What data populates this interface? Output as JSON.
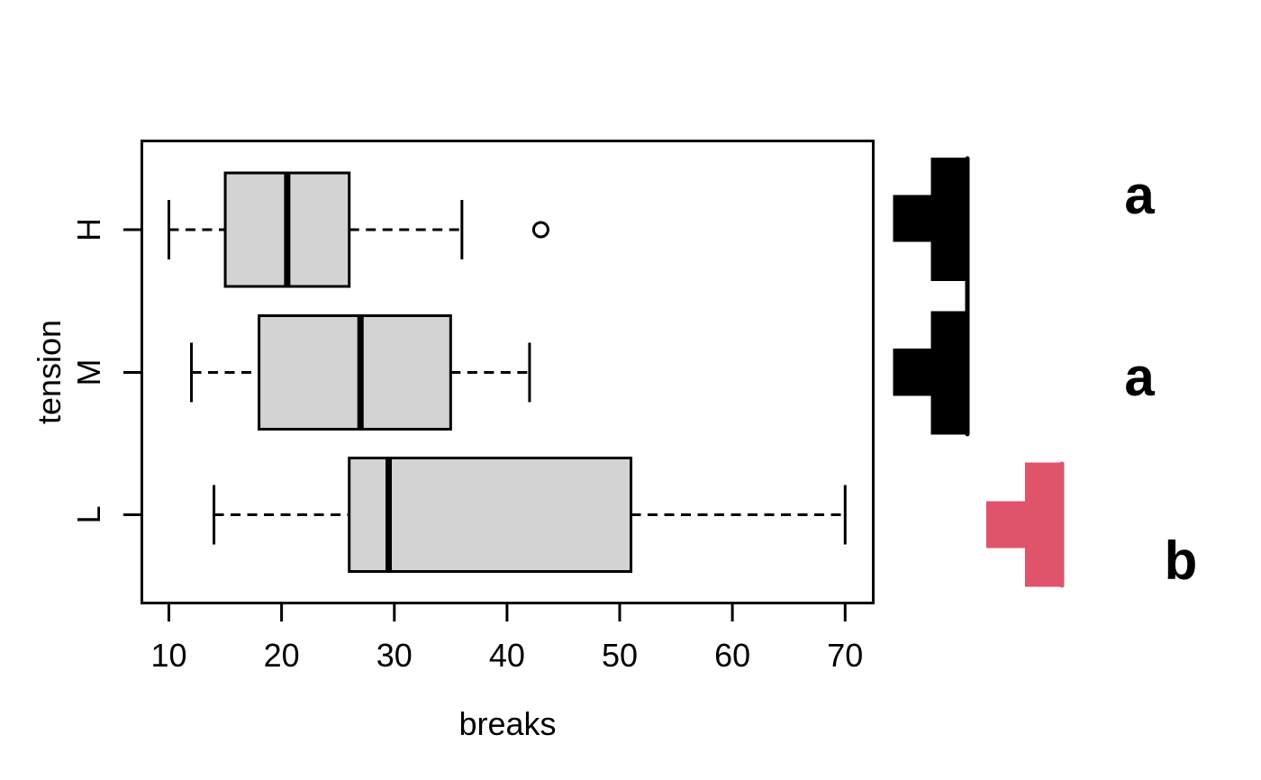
{
  "chart_data": {
    "type": "boxplot",
    "orientation": "horizontal",
    "title": "",
    "xlabel": "breaks",
    "ylabel": "tension",
    "x_ticks": [
      10,
      20,
      30,
      40,
      50,
      60,
      70
    ],
    "xlim": [
      10,
      70
    ],
    "categories": [
      "H",
      "M",
      "L"
    ],
    "series": [
      {
        "level": "H",
        "whisker_low": 10,
        "q1": 15,
        "median": 20.5,
        "q3": 26,
        "whisker_high": 36,
        "outliers": [
          43
        ],
        "group": "a"
      },
      {
        "level": "M",
        "whisker_low": 12,
        "q1": 18,
        "median": 27,
        "q3": 35,
        "whisker_high": 42,
        "outliers": [],
        "group": "a"
      },
      {
        "level": "L",
        "whisker_low": 14,
        "q1": 26,
        "median": 29.5,
        "q3": 51,
        "whisker_high": 70,
        "outliers": [],
        "group": "b"
      }
    ],
    "box_fill": "#d3d3d3",
    "line_color": "#000000",
    "grid": false
  },
  "significance": {
    "letters": [
      {
        "label": "a",
        "level": "H",
        "color": "#000000"
      },
      {
        "label": "a",
        "level": "M",
        "color": "#000000"
      },
      {
        "label": "b",
        "level": "L",
        "color": "#df536b"
      }
    ],
    "group_markers": [
      {
        "group": "a",
        "levels": [
          "H",
          "M"
        ],
        "color": "#000000",
        "rects": [
          [
            991.5,
            216.5,
            42,
            52
          ],
          [
            1033.5,
            175,
            38.5,
            137
          ],
          [
            1033.5,
            345.5,
            38.5,
            137
          ],
          [
            991.5,
            387,
            42,
            52.5
          ]
        ],
        "line": [
          1074,
          176,
          1074,
          482
        ]
      },
      {
        "group": "b",
        "levels": [
          "L"
        ],
        "color": "#df536b",
        "rects": [
          [
            1095,
            556.5,
            43,
            52
          ],
          [
            1138,
            513.5,
            39,
            138
          ]
        ],
        "line": [
          1179,
          515,
          1179,
          650
        ]
      }
    ]
  }
}
